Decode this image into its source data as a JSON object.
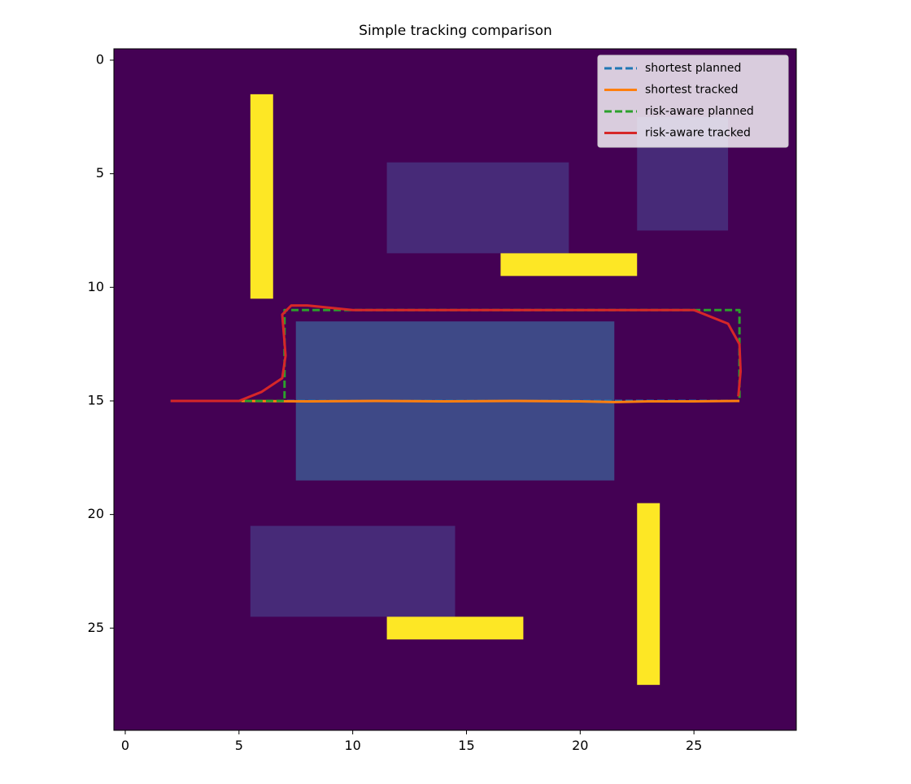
{
  "chart_data": {
    "type": "image-paths",
    "title": "Simple tracking comparison",
    "xlim": [
      -0.5,
      29.5
    ],
    "ylim": [
      29.5,
      -0.5
    ],
    "xticks": [
      0,
      5,
      10,
      15,
      20,
      25
    ],
    "yticks": [
      0,
      5,
      10,
      15,
      20,
      25
    ],
    "colormap": "viridis",
    "clim": [
      0,
      1
    ],
    "background_value": 0,
    "regions": [
      {
        "cols": [
          6,
          6
        ],
        "rows": [
          2,
          10
        ],
        "value": 1
      },
      {
        "cols": [
          12,
          19
        ],
        "rows": [
          5,
          8
        ],
        "value": 0.12
      },
      {
        "cols": [
          23,
          26
        ],
        "rows": [
          3,
          7
        ],
        "value": 0.12
      },
      {
        "cols": [
          17,
          22
        ],
        "rows": [
          9,
          9
        ],
        "value": 1
      },
      {
        "cols": [
          8,
          21
        ],
        "rows": [
          12,
          18
        ],
        "value": 0.22
      },
      {
        "cols": [
          6,
          14
        ],
        "rows": [
          21,
          24
        ],
        "value": 0.12
      },
      {
        "cols": [
          12,
          17
        ],
        "rows": [
          25,
          25
        ],
        "value": 1
      },
      {
        "cols": [
          23,
          23
        ],
        "rows": [
          20,
          27
        ],
        "value": 1
      }
    ],
    "legend": "upper right",
    "series": [
      {
        "name": "shortest planned",
        "color": "#1f77b4",
        "dashed": true,
        "x": [
          2,
          27
        ],
        "y": [
          15,
          15
        ]
      },
      {
        "name": "shortest tracked",
        "color": "#ff7f0e",
        "dashed": false,
        "x": [
          2,
          5,
          8,
          11,
          14,
          17,
          20,
          21.5,
          23,
          25,
          27
        ],
        "y": [
          15,
          15,
          15.02,
          15,
          15.02,
          15,
          15.02,
          15.05,
          15.02,
          15.02,
          15
        ]
      },
      {
        "name": "risk-aware planned",
        "color": "#2ca02c",
        "dashed": true,
        "x": [
          2,
          7,
          7,
          27,
          27
        ],
        "y": [
          15,
          15,
          11,
          11,
          15
        ]
      },
      {
        "name": "risk-aware tracked",
        "color": "#d62728",
        "dashed": false,
        "x": [
          2,
          5,
          6,
          6.9,
          7.05,
          6.9,
          7.3,
          8,
          10,
          15,
          20,
          25,
          26.5,
          27,
          27.05,
          26.95
        ],
        "y": [
          15,
          15,
          14.6,
          14,
          13,
          11.2,
          10.8,
          10.8,
          11,
          11,
          11,
          11,
          11.6,
          12.5,
          13.7,
          14.8
        ]
      }
    ]
  }
}
